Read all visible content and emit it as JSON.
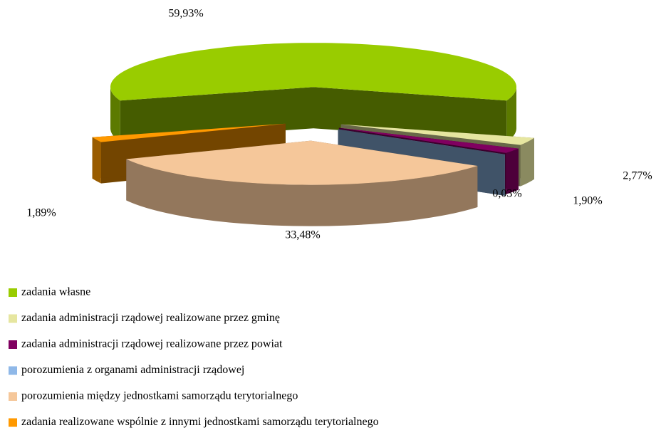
{
  "chart_data": {
    "type": "pie3d",
    "categories": [
      "zadania własne",
      "zadania administracji rządowej realizowane przez gminę",
      "zadania administracji rządowej realizowane przez powiat",
      "porozumienia z organami administracji rządowej",
      "porozumienia między jednostkami samorządu terytorialnego",
      "zadania realizowane wspólnie z innymi jednostkami samorządu terytorialnego"
    ],
    "values": [
      59.93,
      2.77,
      1.9,
      0.03,
      33.48,
      1.89
    ],
    "value_labels": [
      "59,93%",
      "2,77%",
      "1,90%",
      "0,03%",
      "33,48%",
      "1,89%"
    ],
    "colors": [
      "#99cc00",
      "#e6e6a0",
      "#800060",
      "#8fb8e8",
      "#f5c79a",
      "#ff9900"
    ],
    "legend": "bottom-left"
  }
}
